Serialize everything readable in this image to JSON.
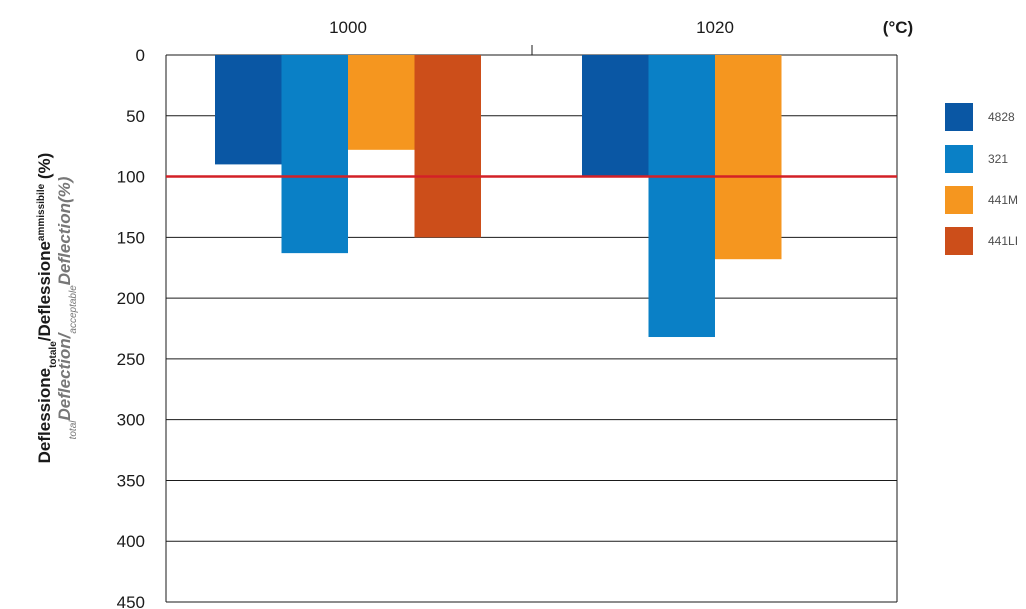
{
  "chart_data": {
    "type": "bar",
    "orientation": "vertical, bars hang downward from 0",
    "categories": [
      "1000",
      "1020"
    ],
    "x_unit_label": "(°C)",
    "series": [
      {
        "name": "4828",
        "color": "#0a57a4",
        "values": [
          90,
          100
        ]
      },
      {
        "name": "321",
        "color": "#0a80c6",
        "values": [
          163,
          232
        ]
      },
      {
        "name": "441M",
        "color": "#f5961f",
        "values": [
          78,
          168
        ]
      },
      {
        "name": "441LI",
        "color": "#cc4e1a",
        "values": [
          150,
          null
        ]
      }
    ],
    "y_ticks": [
      "0",
      "50",
      "100",
      "150",
      "200",
      "250",
      "300",
      "350",
      "400",
      "450"
    ],
    "ylim": [
      0,
      450
    ],
    "y_inverted": true,
    "reference_line": {
      "value": 100,
      "color": "#d32027"
    },
    "ylabel": {
      "line1": {
        "main": "Deflessione",
        "sub1": "totale",
        "middle": "/Deflessione",
        "sub2": "ammissibile",
        "end": " (%)"
      },
      "line2": {
        "sub1": "total",
        "main1": "Deflection/",
        "sub2": "acceptable",
        "main2": "Deflection(%)"
      }
    },
    "grid": "horizontal",
    "legend_position": "right"
  }
}
